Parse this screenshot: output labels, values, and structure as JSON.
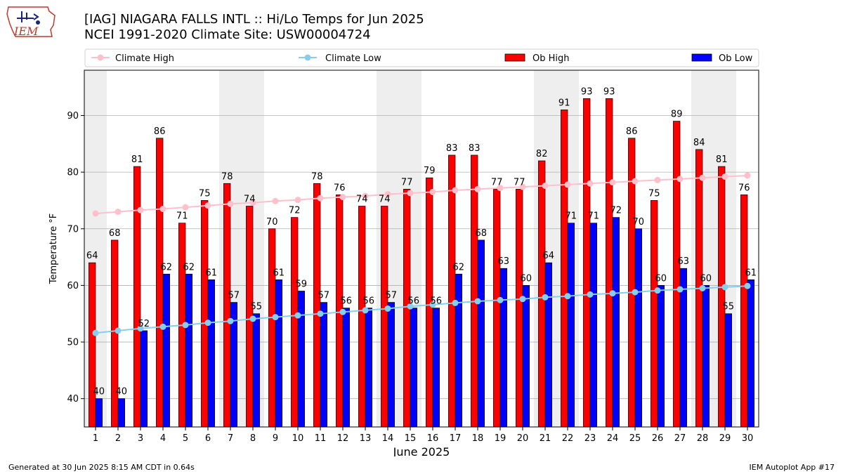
{
  "header": {
    "title_line1": "[IAG] NIAGARA FALLS INTL :: Hi/Lo Temps for Jun 2025",
    "title_line2": "NCEI 1991-2020 Climate Site: USW00004724"
  },
  "logo": {
    "text": "IEM"
  },
  "footer": {
    "generated": "Generated at 30 Jun 2025 8:15 AM CDT in 0.64s",
    "app": "IEM Autoplot App #17"
  },
  "colors": {
    "ob_high": "#ff0000",
    "ob_low": "#0000ff",
    "climate_high": "#ffc0cb",
    "climate_low": "#87ceeb",
    "weekend_shade": "#eeeeee",
    "grid": "#b0b0b0"
  },
  "chart_data": {
    "type": "bar",
    "xlabel": "June 2025",
    "ylabel": "Temperature °F",
    "ylim": [
      35,
      98
    ],
    "yticks": [
      40,
      50,
      60,
      70,
      80,
      90
    ],
    "grid": "horizontal",
    "legend_position": "top",
    "categories": [
      "1",
      "2",
      "3",
      "4",
      "5",
      "6",
      "7",
      "8",
      "9",
      "10",
      "11",
      "12",
      "13",
      "14",
      "15",
      "16",
      "17",
      "18",
      "19",
      "20",
      "21",
      "22",
      "23",
      "24",
      "25",
      "26",
      "27",
      "28",
      "29",
      "30"
    ],
    "shaded_days": [
      1,
      7,
      8,
      14,
      15,
      21,
      22,
      28,
      29
    ],
    "series": [
      {
        "name": "Climate High",
        "kind": "line",
        "values": [
          72.7,
          73.0,
          73.3,
          73.5,
          73.8,
          74.1,
          74.4,
          74.6,
          74.9,
          75.1,
          75.4,
          75.6,
          75.8,
          76.1,
          76.3,
          76.5,
          76.8,
          77.0,
          77.2,
          77.4,
          77.6,
          77.8,
          78.0,
          78.2,
          78.4,
          78.6,
          78.8,
          79.0,
          79.2,
          79.4
        ]
      },
      {
        "name": "Climate Low",
        "kind": "line",
        "values": [
          51.6,
          52.0,
          52.4,
          52.7,
          53.0,
          53.4,
          53.7,
          54.1,
          54.4,
          54.7,
          55.0,
          55.3,
          55.6,
          55.9,
          56.3,
          56.6,
          56.9,
          57.2,
          57.4,
          57.6,
          57.9,
          58.1,
          58.4,
          58.6,
          58.8,
          59.1,
          59.3,
          59.5,
          59.7,
          59.9
        ]
      },
      {
        "name": "Ob High",
        "kind": "bar",
        "values": [
          64,
          68,
          81,
          86,
          71,
          75,
          78,
          74,
          70,
          72,
          78,
          76,
          74,
          74,
          77,
          79,
          83,
          83,
          77,
          77,
          82,
          91,
          93,
          93,
          86,
          75,
          89,
          84,
          81,
          76
        ]
      },
      {
        "name": "Ob Low",
        "kind": "bar",
        "values": [
          40,
          40,
          52,
          62,
          62,
          61,
          57,
          55,
          61,
          59,
          57,
          56,
          56,
          57,
          56,
          56,
          62,
          68,
          63,
          60,
          64,
          71,
          71,
          72,
          70,
          60,
          63,
          60,
          55,
          61
        ]
      }
    ]
  }
}
